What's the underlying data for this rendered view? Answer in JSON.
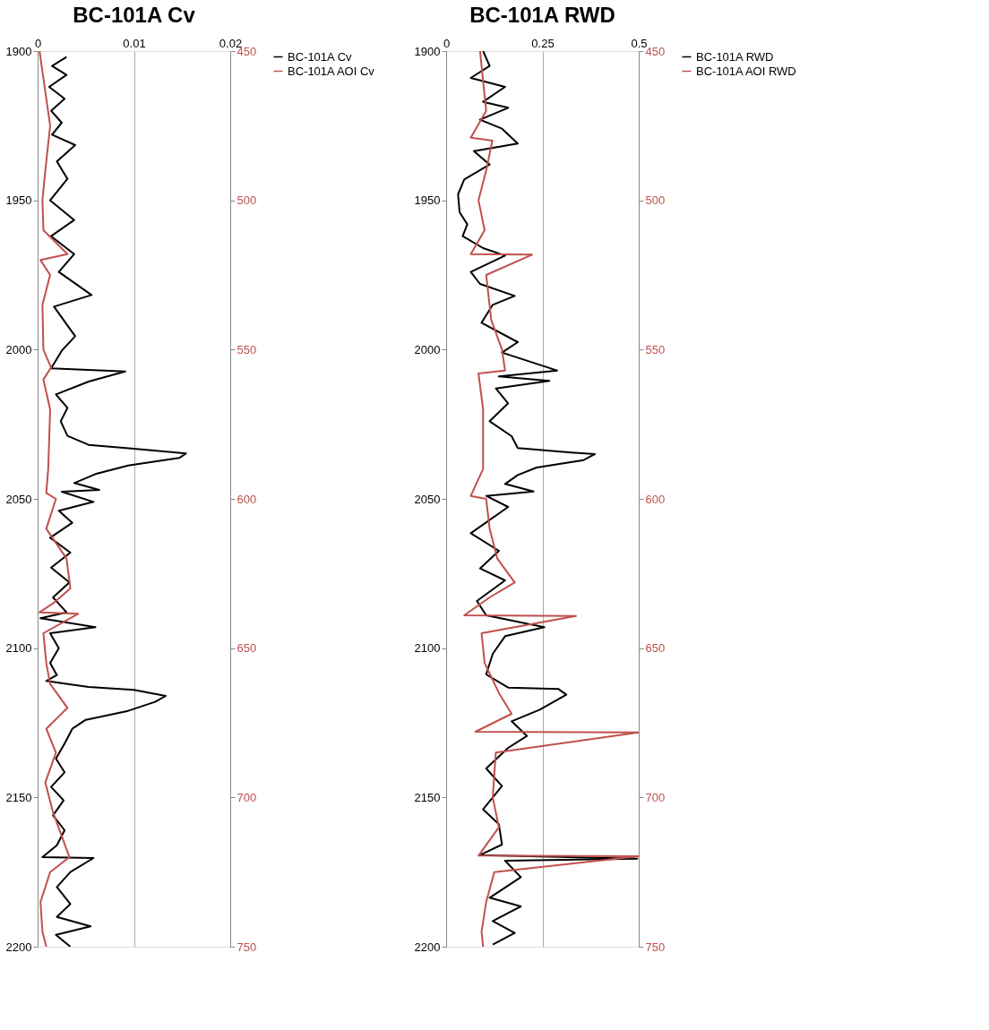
{
  "chart_data": [
    {
      "type": "line",
      "title": "BC-101A Cv",
      "xlim": [
        0,
        0.02
      ],
      "xticks": [
        0,
        0.01,
        0.02
      ],
      "ylim": [
        2200,
        1900
      ],
      "yticks": [
        1900,
        1950,
        2000,
        2050,
        2100,
        2150,
        2200
      ],
      "y2lim": [
        750,
        450
      ],
      "y2ticks": [
        450,
        500,
        550,
        600,
        650,
        700,
        750
      ],
      "grid": "x",
      "legend": "right",
      "series": [
        {
          "name": "BC-101A Cv",
          "color": "#000000",
          "x": [
            0.003,
            0.0015,
            0.003,
            0.0012,
            0.0028,
            0.0014,
            0.0025,
            0.0015,
            0.0039,
            0.002,
            0.0031,
            0.0013,
            0.0038,
            0.0014,
            0.0038,
            0.0022,
            0.0056,
            0.0017,
            0.0039,
            0.0025,
            0.0014,
            0.0091,
            0.0053,
            0.0019,
            0.0031,
            0.0024,
            0.0031,
            0.0053,
            0.01,
            0.0154,
            0.0147,
            0.0094,
            0.006,
            0.0038,
            0.0064,
            0.0025,
            0.0058,
            0.0022,
            0.0036,
            0.0013,
            0.0034,
            0.0014,
            0.0033,
            0.0016,
            0.003,
            0.0003,
            0.006,
            0.0013,
            0.0022,
            0.0013,
            0.002,
            0.0009,
            0.0053,
            0.01,
            0.0133,
            0.0122,
            0.0094,
            0.005,
            0.0036,
            0.0028,
            0.0019,
            0.0028,
            0.0014,
            0.0027,
            0.0016,
            0.0028,
            0.002,
            0.0005,
            0.0058,
            0.0034,
            0.002,
            0.0034,
            0.002,
            0.0055,
            0.0019,
            0.0034
          ],
          "values": [
            1902,
            1905,
            1908,
            1912,
            1916,
            1920,
            1924,
            1928,
            1931.5,
            1937,
            1942.8,
            1950,
            1956.6,
            1962,
            1968,
            1974,
            1981.7,
            1985.6,
            1995.5,
            2000.4,
            2006.3,
            2007.3,
            2010.7,
            2015,
            2019.5,
            2024,
            2028.9,
            2031.9,
            2033.2,
            2034.8,
            2036.3,
            2038.8,
            2041.7,
            2044.7,
            2047,
            2047.6,
            2051,
            2054,
            2058,
            2063,
            2068,
            2073,
            2078,
            2083,
            2088,
            2090,
            2093,
            2095,
            2100,
            2105,
            2109,
            2111,
            2113,
            2114,
            2116,
            2118,
            2121,
            2124,
            2127,
            2132,
            2137,
            2141.6,
            2146.5,
            2151,
            2156,
            2161,
            2166,
            2170,
            2170.3,
            2175,
            2180,
            2185.7,
            2190,
            2193.2,
            2196,
            2200
          ]
        },
        {
          "name": "BC-101A AOI Cv",
          "color": "#c0504d",
          "axis": "y2",
          "x": [
            0.0002,
            0.0013,
            0.0008,
            0.0005,
            0.0006,
            0.0031,
            0.0003,
            0.0013,
            0.0005,
            0.0006,
            0.0014,
            0.0006,
            0.0013,
            0.0011,
            0.0009,
            0.0019,
            0.0009,
            0.003,
            0.0034,
            0.0016,
            0.0002,
            0.0042,
            0.0006,
            0.0009,
            0.0013,
            0.0031,
            0.0009,
            0.0019,
            0.0008,
            0.0016,
            0.0024,
            0.0033,
            0.0013,
            0.0003,
            0.0005,
            0.0009
          ],
          "values": [
            450,
            475,
            490,
            500,
            510,
            518,
            520,
            525,
            535,
            550,
            556,
            560,
            570,
            590,
            598,
            600,
            610,
            620,
            630,
            635,
            638,
            638.5,
            645,
            655,
            662,
            670,
            677,
            685,
            695,
            705,
            712,
            720,
            725,
            735,
            745,
            750
          ]
        }
      ]
    },
    {
      "type": "line",
      "title": "BC-101A RWD",
      "xlim": [
        0,
        0.5
      ],
      "xticks": [
        0,
        0.25,
        0.5
      ],
      "ylim": [
        2200,
        1900
      ],
      "yticks": [
        1900,
        1950,
        2000,
        2050,
        2100,
        2150,
        2200
      ],
      "y2lim": [
        750,
        450
      ],
      "y2ticks": [
        450,
        500,
        550,
        600,
        650,
        700,
        750
      ],
      "grid": "x",
      "legend": "right",
      "series": [
        {
          "name": "BC-101A RWD",
          "color": "#000000",
          "x": [
            0.096,
            0.113,
            0.064,
            0.153,
            0.096,
            0.161,
            0.088,
            0.145,
            0.186,
            0.072,
            0.113,
            0.047,
            0.031,
            0.035,
            0.055,
            0.043,
            0.096,
            0.153,
            0.064,
            0.088,
            0.178,
            0.121,
            0.092,
            0.186,
            0.145,
            0.288,
            0.137,
            0.268,
            0.129,
            0.161,
            0.113,
            0.17,
            0.186,
            0.325,
            0.386,
            0.357,
            0.235,
            0.186,
            0.153,
            0.227,
            0.104,
            0.161,
            0.064,
            0.137,
            0.088,
            0.153,
            0.08,
            0.104,
            0.255,
            0.153,
            0.121,
            0.104,
            0.161,
            0.292,
            0.312,
            0.243,
            0.17,
            0.21,
            0.161,
            0.104,
            0.145,
            0.096,
            0.137,
            0.145,
            0.088,
            0.496,
            0.153,
            0.194,
            0.113,
            0.194,
            0.121,
            0.178,
            0.121
          ],
          "values": [
            1900,
            1905,
            1909,
            1912,
            1917,
            1919,
            1923,
            1926,
            1931,
            1933.5,
            1938,
            1943,
            1948,
            1954,
            1958,
            1962,
            1966,
            1968.5,
            1974,
            1978,
            1982,
            1985,
            1991,
            1997.5,
            2001,
            2007,
            2009,
            2010.5,
            2013,
            2018,
            2024,
            2029,
            2033,
            2034.5,
            2035,
            2037,
            2039.5,
            2042,
            2045,
            2047.5,
            2049,
            2052.7,
            2061.5,
            2067.4,
            2073.3,
            2077.3,
            2084.2,
            2089,
            2093,
            2096,
            2101.9,
            2108.8,
            2113.2,
            2113.7,
            2115.6,
            2120.6,
            2124.5,
            2129.4,
            2133.4,
            2140.3,
            2146.2,
            2154,
            2159,
            2165.8,
            2169.3,
            2170.5,
            2171.2,
            2176.7,
            2183.6,
            2186.5,
            2191.4,
            2195.4,
            2199.3
          ]
        },
        {
          "name": "BC-101A AOI RWD",
          "color": "#c0504d",
          "axis": "y2",
          "x": [
            0.088,
            0.104,
            0.064,
            0.12,
            0.104,
            0.084,
            0.1,
            0.064,
            0.223,
            0.104,
            0.117,
            0.145,
            0.153,
            0.084,
            0.096,
            0.096,
            0.064,
            0.104,
            0.113,
            0.133,
            0.178,
            0.113,
            0.047,
            0.337,
            0.092,
            0.1,
            0.137,
            0.17,
            0.076,
            0.5,
            0.129,
            0.121,
            0.137,
            0.084,
            0.5,
            0.125,
            0.104,
            0.092,
            0.096
          ],
          "values": [
            450,
            470,
            479,
            480,
            490,
            500,
            510,
            518,
            518.2,
            525,
            540,
            550,
            557,
            558,
            570,
            590,
            599,
            600,
            610,
            620,
            628,
            633,
            639,
            639.2,
            645,
            655,
            665,
            672,
            678,
            678.2,
            685,
            700,
            710,
            719.5,
            719.7,
            725,
            735,
            745,
            750
          ]
        }
      ]
    }
  ]
}
